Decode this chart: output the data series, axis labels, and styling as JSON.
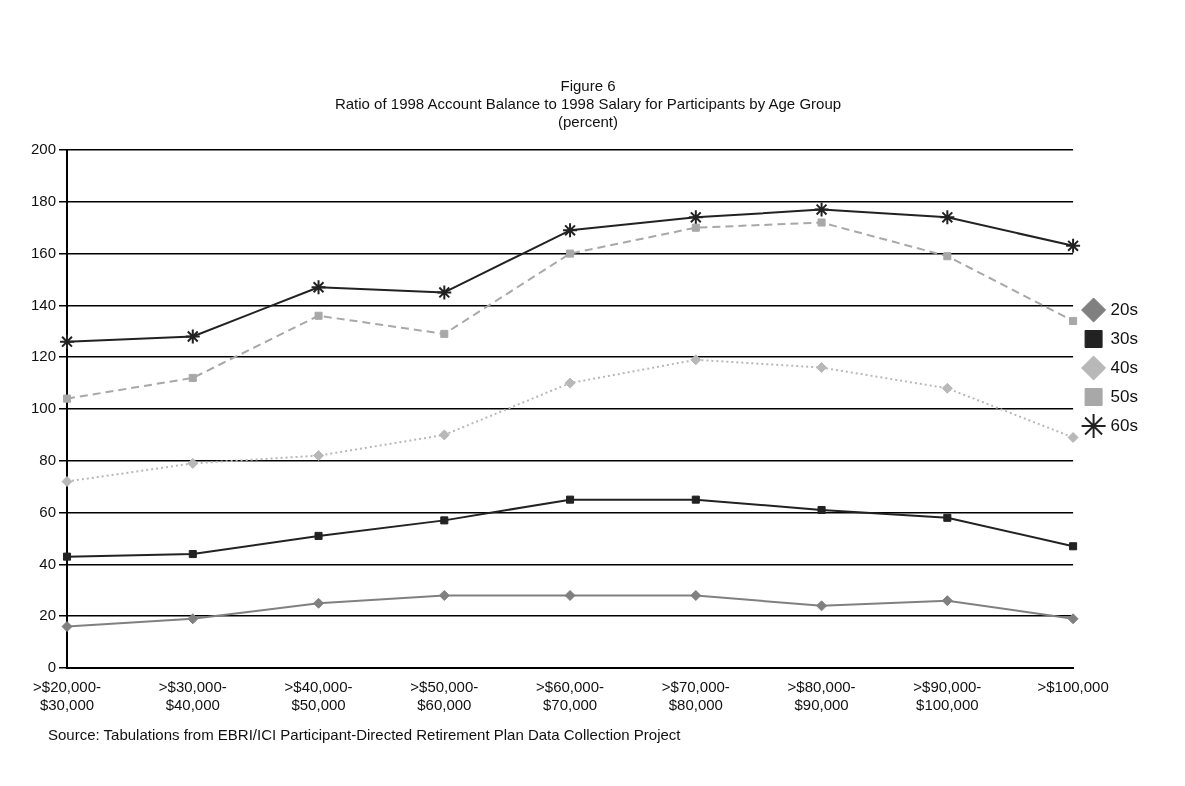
{
  "chart_data": {
    "type": "line",
    "title": "Figure 6",
    "subtitle": "Ratio of 1998 Account Balance to 1998 Salary for Participants by Age Group\n(percent)",
    "categories": [
      ">$20,000-\n$30,000",
      ">$30,000-\n$40,000",
      ">$40,000-\n$50,000",
      ">$50,000-\n$60,000",
      ">$60,000-\n$70,000",
      ">$70,000-\n$80,000",
      ">$80,000-\n$90,000",
      ">$90,000-\n$100,000",
      ">$100,000"
    ],
    "series": [
      {
        "name": "20s",
        "color": "#808080",
        "marker": "diamond",
        "line_style": "solid",
        "values": [
          16,
          19,
          25,
          28,
          28,
          28,
          24,
          26,
          19
        ]
      },
      {
        "name": "30s",
        "color": "#222222",
        "marker": "square",
        "line_style": "solid",
        "values": [
          43,
          44,
          51,
          57,
          65,
          65,
          61,
          58,
          47
        ]
      },
      {
        "name": "40s",
        "color": "#b8b8b8",
        "marker": "diamond",
        "line_style": "dotted",
        "values": [
          72,
          79,
          82,
          90,
          110,
          119,
          116,
          108,
          89
        ]
      },
      {
        "name": "50s",
        "color": "#a8a8a8",
        "marker": "square",
        "line_style": "dashed",
        "values": [
          104,
          112,
          136,
          129,
          160,
          170,
          172,
          159,
          134
        ]
      },
      {
        "name": "60s",
        "color": "#222222",
        "marker": "cross",
        "line_style": "solid",
        "values": [
          126,
          128,
          147,
          145,
          169,
          174,
          177,
          174,
          163
        ]
      }
    ],
    "ylim": [
      0,
      200
    ],
    "yticks": [
      0,
      20,
      40,
      60,
      80,
      100,
      120,
      140,
      160,
      180,
      200
    ],
    "grid": "y",
    "legend": "right",
    "annotations": [
      "Source: Tabulations from EBRI/ICI Participant-Directed Retirement Plan Data Collection Project"
    ]
  }
}
